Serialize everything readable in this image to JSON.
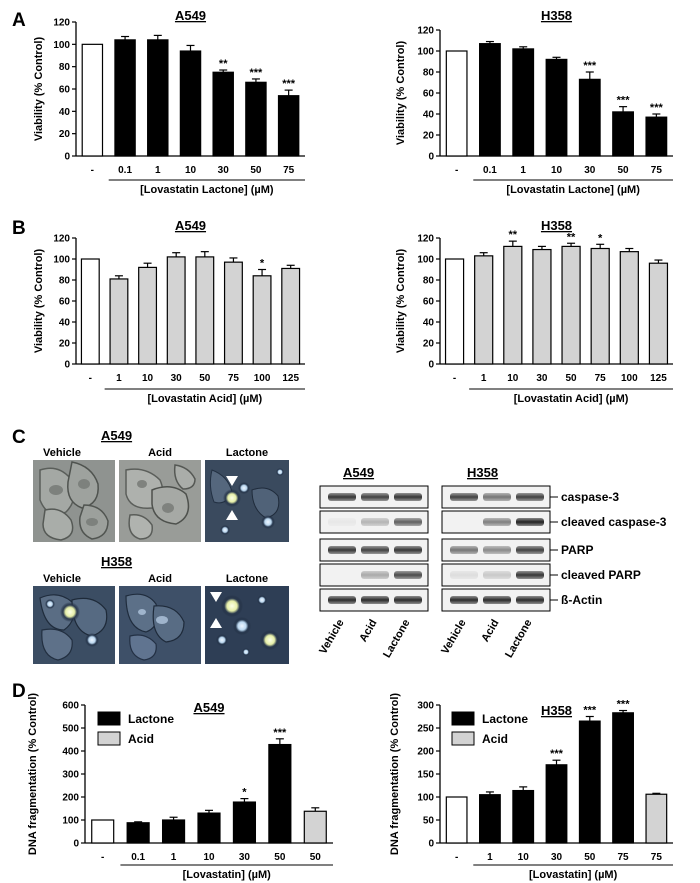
{
  "panels": {
    "A": "A",
    "B": "B",
    "C": "C",
    "D": "D"
  },
  "colors": {
    "lactone": "#000000",
    "acid": "#d3d3d3",
    "control": "#ffffff"
  },
  "chart_data": [
    {
      "id": "A-A549",
      "type": "bar",
      "panel": "A",
      "title": "A549",
      "ylabel": "Viability (% Control)",
      "xlabel": "[Lovastatin Lactone] (µM)",
      "ylim": [
        0,
        120
      ],
      "yticks": [
        0,
        20,
        40,
        60,
        80,
        100,
        120
      ],
      "categories": [
        "-",
        "0.1",
        "1",
        "10",
        "30",
        "50",
        "75"
      ],
      "values": [
        100,
        104,
        104,
        94,
        75,
        66,
        54
      ],
      "errors": [
        0,
        3,
        4,
        5,
        2,
        3,
        5
      ],
      "fills": [
        "control",
        "lactone",
        "lactone",
        "lactone",
        "lactone",
        "lactone",
        "lactone"
      ],
      "stars": [
        "",
        "",
        "",
        "",
        "**",
        "***",
        "***"
      ]
    },
    {
      "id": "A-H358",
      "type": "bar",
      "panel": "A",
      "title": "H358",
      "ylabel": "Viability (% Control)",
      "xlabel": "[Lovastatin Lactone] (µM)",
      "ylim": [
        0,
        120
      ],
      "yticks": [
        0,
        20,
        40,
        60,
        80,
        100,
        120
      ],
      "categories": [
        "-",
        "0.1",
        "1",
        "10",
        "30",
        "50",
        "75"
      ],
      "values": [
        100,
        107,
        102,
        92,
        73,
        42,
        37
      ],
      "errors": [
        0,
        2,
        2,
        2,
        7,
        5,
        3
      ],
      "fills": [
        "control",
        "lactone",
        "lactone",
        "lactone",
        "lactone",
        "lactone",
        "lactone"
      ],
      "stars": [
        "",
        "",
        "",
        "",
        "***",
        "***",
        "***"
      ]
    },
    {
      "id": "B-A549",
      "type": "bar",
      "panel": "B",
      "title": "A549",
      "ylabel": "Viability (% Control)",
      "xlabel": "[Lovastatin Acid] (µM)",
      "ylim": [
        0,
        120
      ],
      "yticks": [
        0,
        20,
        40,
        60,
        80,
        100,
        120
      ],
      "categories": [
        "-",
        "1",
        "10",
        "30",
        "50",
        "75",
        "100",
        "125"
      ],
      "values": [
        100,
        81,
        92,
        102,
        102,
        97,
        84,
        91
      ],
      "errors": [
        0,
        3,
        4,
        4,
        5,
        4,
        6,
        3
      ],
      "fills": [
        "control",
        "acid",
        "acid",
        "acid",
        "acid",
        "acid",
        "acid",
        "acid"
      ],
      "stars": [
        "",
        "",
        "",
        "",
        "",
        "",
        "*",
        ""
      ]
    },
    {
      "id": "B-H358",
      "type": "bar",
      "panel": "B",
      "title": "H358",
      "ylabel": "Viability (% Control)",
      "xlabel": "[Lovastatin Acid] (µM)",
      "ylim": [
        0,
        120
      ],
      "yticks": [
        0,
        20,
        40,
        60,
        80,
        100,
        120
      ],
      "categories": [
        "-",
        "1",
        "10",
        "30",
        "50",
        "75",
        "100",
        "125"
      ],
      "values": [
        100,
        103,
        112,
        109,
        112,
        110,
        107,
        96
      ],
      "errors": [
        0,
        3,
        5,
        3,
        3,
        4,
        3,
        3
      ],
      "fills": [
        "control",
        "acid",
        "acid",
        "acid",
        "acid",
        "acid",
        "acid",
        "acid"
      ],
      "stars": [
        "",
        "",
        "**",
        "",
        "**",
        "*",
        "",
        ""
      ]
    },
    {
      "id": "D-A549",
      "type": "bar",
      "panel": "D",
      "title": "A549",
      "ylabel": "DNA fragmentation (% Control)",
      "xlabel": "[Lovastatin] (µM)",
      "ylim": [
        0,
        600
      ],
      "yticks": [
        0,
        100,
        200,
        300,
        400,
        500,
        600
      ],
      "categories": [
        "-",
        "0.1",
        "1",
        "10",
        "30",
        "50",
        "50"
      ],
      "values": [
        100,
        88,
        100,
        130,
        178,
        428,
        138
      ],
      "errors": [
        0,
        4,
        12,
        12,
        15,
        25,
        15
      ],
      "fills": [
        "control",
        "lactone",
        "lactone",
        "lactone",
        "lactone",
        "lactone",
        "acid"
      ],
      "stars": [
        "",
        "",
        "",
        "",
        "*",
        "***",
        ""
      ],
      "legend": [
        "Lactone",
        "Acid"
      ]
    },
    {
      "id": "D-H358",
      "type": "bar",
      "panel": "D",
      "title": "H358",
      "ylabel": "DNA fragmentation (% Control)",
      "xlabel": "[Lovastatin] (µM)",
      "ylim": [
        0,
        300
      ],
      "yticks": [
        0,
        50,
        100,
        150,
        200,
        250,
        300
      ],
      "categories": [
        "-",
        "1",
        "10",
        "30",
        "50",
        "75",
        "75"
      ],
      "values": [
        100,
        105,
        114,
        170,
        265,
        283,
        106
      ],
      "errors": [
        0,
        6,
        8,
        10,
        10,
        5,
        2
      ],
      "fills": [
        "control",
        "lactone",
        "lactone",
        "lactone",
        "lactone",
        "lactone",
        "acid"
      ],
      "stars": [
        "",
        "",
        "",
        "***",
        "***",
        "***",
        ""
      ],
      "legend": [
        "Lactone",
        "Acid"
      ]
    }
  ],
  "micrographs": {
    "a549_title": "A549",
    "h358_title": "H358",
    "conditions": [
      "Vehicle",
      "Acid",
      "Lactone"
    ]
  },
  "western_blot": {
    "cell_lines": [
      "A549",
      "H358"
    ],
    "bands": [
      "caspase-3",
      "cleaved caspase-3",
      "PARP",
      "cleaved PARP",
      "ß-Actin"
    ],
    "conditions": [
      "Vehicle",
      "Acid",
      "Lactone"
    ]
  }
}
